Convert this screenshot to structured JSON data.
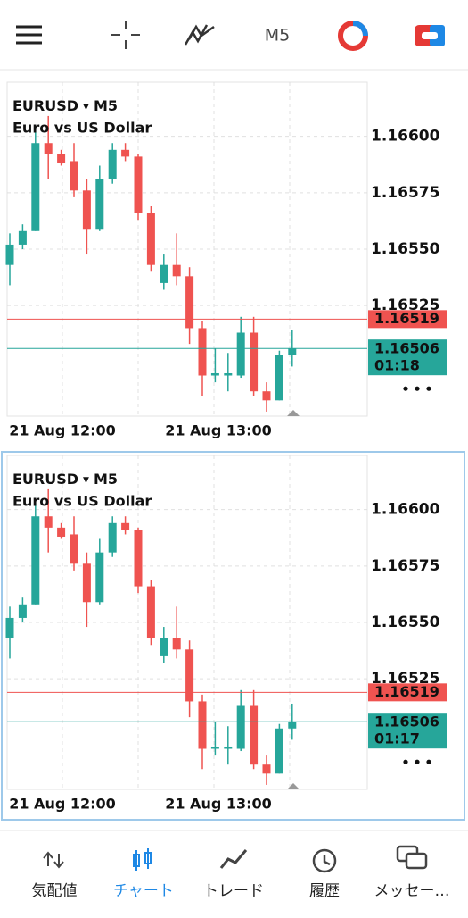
{
  "toolbar": {
    "timeframe": "M5"
  },
  "chart_data": [
    {
      "type": "candlestick",
      "symbol": "EURUSD",
      "timeframe": "M5",
      "description": "Euro vs US Dollar",
      "up_color": "#26a69a",
      "down_color": "#ef5350",
      "open": [
        1.16543,
        1.16552,
        1.16558,
        1.16597,
        1.16592,
        1.16589,
        1.16576,
        1.16559,
        1.16581,
        1.16594,
        1.16591,
        1.16566,
        1.16535,
        1.16543,
        1.16538,
        1.16515,
        1.16494,
        1.16494,
        1.16494,
        1.16513,
        1.16487,
        1.16483,
        1.16503
      ],
      "high": [
        1.16557,
        1.16561,
        1.16603,
        1.16609,
        1.16594,
        1.16597,
        1.16581,
        1.16587,
        1.16597,
        1.16597,
        1.16592,
        1.16569,
        1.16548,
        1.16557,
        1.16542,
        1.16518,
        1.16506,
        1.16504,
        1.1652,
        1.1652,
        1.16491,
        1.16505,
        1.16514
      ],
      "low": [
        1.16534,
        1.1655,
        1.16558,
        1.16581,
        1.16587,
        1.16573,
        1.16548,
        1.16558,
        1.16579,
        1.16589,
        1.16563,
        1.1654,
        1.16532,
        1.16534,
        1.16508,
        1.16485,
        1.16491,
        1.16487,
        1.16493,
        1.16485,
        1.16478,
        1.16483,
        1.16498
      ],
      "close": [
        1.16552,
        1.16558,
        1.16597,
        1.16592,
        1.16588,
        1.16576,
        1.16559,
        1.16581,
        1.16594,
        1.16591,
        1.16566,
        1.16543,
        1.16543,
        1.16538,
        1.16515,
        1.16494,
        1.16495,
        1.16495,
        1.16513,
        1.16487,
        1.16483,
        1.16503,
        1.16506
      ],
      "ylim": [
        1.16476,
        1.16624
      ],
      "yticks": [
        1.16525,
        {
          "value": 1.1655,
          "label": "1.16550"
        },
        1.16575,
        {
          "value": 1.166,
          "label": "1.16600"
        }
      ],
      "ask": 1.16519,
      "bid": 1.16506,
      "countdown": "01:18",
      "x_labels": [
        "21 Aug 12:00",
        "21 Aug 13:00"
      ]
    },
    {
      "type": "candlestick",
      "symbol": "EURUSD",
      "timeframe": "M5",
      "description": "Euro vs US Dollar",
      "up_color": "#26a69a",
      "down_color": "#ef5350",
      "open": [
        1.16543,
        1.16552,
        1.16558,
        1.16597,
        1.16592,
        1.16589,
        1.16576,
        1.16559,
        1.16581,
        1.16594,
        1.16591,
        1.16566,
        1.16535,
        1.16543,
        1.16538,
        1.16515,
        1.16494,
        1.16494,
        1.16494,
        1.16513,
        1.16487,
        1.16483,
        1.16503
      ],
      "high": [
        1.16557,
        1.16561,
        1.16603,
        1.16609,
        1.16594,
        1.16597,
        1.16581,
        1.16587,
        1.16597,
        1.16597,
        1.16592,
        1.16569,
        1.16548,
        1.16557,
        1.16542,
        1.16518,
        1.16506,
        1.16504,
        1.1652,
        1.1652,
        1.16491,
        1.16505,
        1.16514
      ],
      "low": [
        1.16534,
        1.1655,
        1.16558,
        1.16581,
        1.16587,
        1.16573,
        1.16548,
        1.16558,
        1.16579,
        1.16589,
        1.16563,
        1.1654,
        1.16532,
        1.16534,
        1.16508,
        1.16485,
        1.16491,
        1.16487,
        1.16493,
        1.16485,
        1.16478,
        1.16483,
        1.16498
      ],
      "close": [
        1.16552,
        1.16558,
        1.16597,
        1.16592,
        1.16588,
        1.16576,
        1.16559,
        1.16581,
        1.16594,
        1.16591,
        1.16566,
        1.16543,
        1.16543,
        1.16538,
        1.16515,
        1.16494,
        1.16495,
        1.16495,
        1.16513,
        1.16487,
        1.16483,
        1.16503,
        1.16506
      ],
      "ylim": [
        1.16476,
        1.16624
      ],
      "yticks": [
        1.16525,
        {
          "value": 1.1655,
          "label": "1.16550"
        },
        1.16575,
        {
          "value": 1.166,
          "label": "1.16600"
        }
      ],
      "ask": 1.16519,
      "bid": 1.16506,
      "countdown": "01:17",
      "x_labels": [
        "21 Aug 12:00",
        "21 Aug 13:00"
      ]
    }
  ],
  "nav": {
    "tabs": [
      "気配値",
      "チャート",
      "トレード",
      "履歴",
      "メッセー…"
    ]
  }
}
